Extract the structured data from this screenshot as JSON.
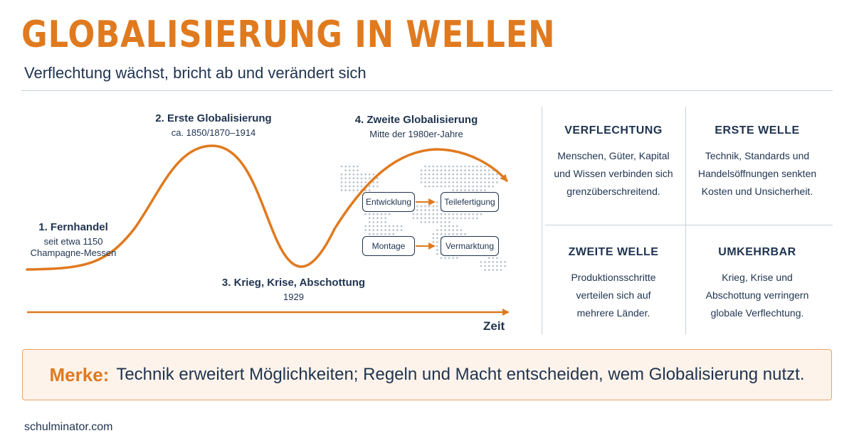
{
  "header": {
    "title": "GLOBALISIERUNG IN WELLEN",
    "subtitle": "Verflechtung wächst, bricht ab und verändert sich"
  },
  "phases": [
    {
      "title": "1. Fernhandel",
      "line1": "seit etwa 1150",
      "line2": "Champagne-Messen"
    },
    {
      "title": "2. Erste Globalisierung",
      "line1": "ca. 1850/1870–1914"
    },
    {
      "title": "3. Krieg, Krise, Abschottung",
      "line1": "1929"
    },
    {
      "title": "4. Zweite Globalisierung",
      "line1": "Mitte der 1980er-Jahre"
    }
  ],
  "process_steps": [
    "Entwicklung",
    "Teilefertigung",
    "Montage",
    "Vermarktung"
  ],
  "axis_label": "Zeit",
  "panels": [
    {
      "heading": "VERFLECHTUNG",
      "lines": [
        "Menschen, Güter, Kapital",
        "und Wissen verbinden sich",
        "grenzüberschreitend."
      ]
    },
    {
      "heading": "ERSTE WELLE",
      "lines": [
        "Technik, Standards und",
        "Handelsöffnungen senkten",
        "Kosten und Unsicherheit."
      ]
    },
    {
      "heading": "ZWEITE WELLE",
      "lines": [
        "Produktionsschritte",
        "verteilen sich auf",
        "mehrere Länder."
      ]
    },
    {
      "heading": "UMKEHRBAR",
      "lines": [
        "Krieg, Krise und",
        "Abschottung verringern",
        "globale Verflechtung."
      ]
    }
  ],
  "merke": {
    "label": "Merke:",
    "text": "Technik erweitert Möglichkeiten; Regeln und Macht entscheiden, wem Globalisierung nutzt."
  },
  "footer": "schulminator.com",
  "colors": {
    "accent": "#e07a1f",
    "text": "#1f3350",
    "rule": "#c9d1db",
    "merke_bg": "#fdf3ea"
  },
  "icons": [
    "world-map-dots-icon",
    "arrow-right-icon",
    "timeline-arrow-icon",
    "wave-curve-icon"
  ]
}
